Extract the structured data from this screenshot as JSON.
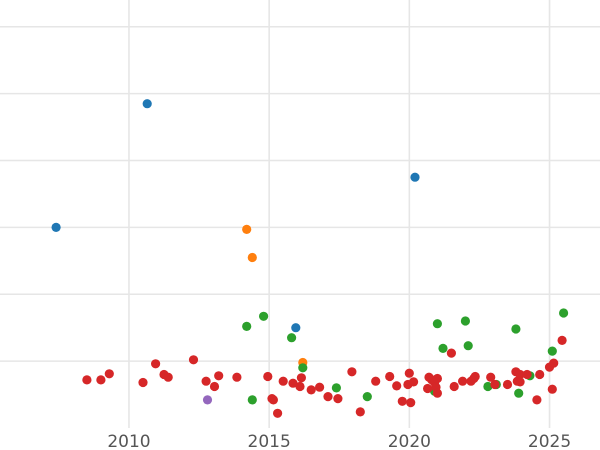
{
  "chart_data": {
    "type": "scatter",
    "title": "",
    "xlabel": "",
    "ylabel": "",
    "xlim": [
      2005.4,
      2026.8
    ],
    "ylim": [
      0,
      6.4
    ],
    "x_ticks": [
      2010,
      2015,
      2020,
      2025
    ],
    "x_tick_labels": [
      "2010",
      "2015",
      "2020",
      "2025"
    ],
    "y_gridlines": [
      1,
      2,
      3,
      4,
      5,
      6
    ],
    "y_tick_labels_visible": false,
    "grid": true,
    "legend": "none",
    "series": [
      {
        "color": "#1f77b4",
        "points": [
          [
            2007.4,
            3.0
          ],
          [
            2010.65,
            4.85
          ],
          [
            2020.2,
            3.75
          ],
          [
            2015.95,
            1.5
          ]
        ]
      },
      {
        "color": "#ff7f0e",
        "points": [
          [
            2014.2,
            2.97
          ],
          [
            2014.4,
            2.55
          ],
          [
            2016.2,
            0.98
          ]
        ]
      },
      {
        "color": "#2ca02c",
        "points": [
          [
            2014.2,
            1.52
          ],
          [
            2014.8,
            1.67
          ],
          [
            2015.8,
            1.35
          ],
          [
            2016.2,
            0.9
          ],
          [
            2017.4,
            0.6
          ],
          [
            2014.4,
            0.42
          ],
          [
            2018.5,
            0.47
          ],
          [
            2021.0,
            1.56
          ],
          [
            2022.0,
            1.6
          ],
          [
            2023.8,
            1.48
          ],
          [
            2025.5,
            1.72
          ],
          [
            2021.2,
            1.19
          ],
          [
            2022.1,
            1.23
          ],
          [
            2025.1,
            1.15
          ],
          [
            2020.9,
            0.55
          ],
          [
            2023.1,
            0.65
          ],
          [
            2023.9,
            0.52
          ],
          [
            2022.8,
            0.62
          ],
          [
            2024.3,
            0.78
          ]
        ]
      },
      {
        "color": "#d62728",
        "points": [
          [
            2008.5,
            0.72
          ],
          [
            2009.0,
            0.72
          ],
          [
            2009.3,
            0.81
          ],
          [
            2010.5,
            0.68
          ],
          [
            2010.95,
            0.96
          ],
          [
            2011.25,
            0.8
          ],
          [
            2011.4,
            0.76
          ],
          [
            2012.3,
            1.02
          ],
          [
            2012.75,
            0.7
          ],
          [
            2013.05,
            0.62
          ],
          [
            2013.2,
            0.78
          ],
          [
            2013.85,
            0.76
          ],
          [
            2014.95,
            0.77
          ],
          [
            2015.15,
            0.42
          ],
          [
            2015.1,
            0.44
          ],
          [
            2015.3,
            0.22
          ],
          [
            2015.5,
            0.7
          ],
          [
            2015.85,
            0.67
          ],
          [
            2016.1,
            0.62
          ],
          [
            2016.15,
            0.75
          ],
          [
            2016.5,
            0.57
          ],
          [
            2016.8,
            0.61
          ],
          [
            2017.1,
            0.47
          ],
          [
            2017.45,
            0.44
          ],
          [
            2017.95,
            0.84
          ],
          [
            2018.25,
            0.24
          ],
          [
            2018.8,
            0.7
          ],
          [
            2019.3,
            0.77
          ],
          [
            2019.55,
            0.63
          ],
          [
            2019.75,
            0.4
          ],
          [
            2019.95,
            0.65
          ],
          [
            2020.0,
            0.82
          ],
          [
            2020.05,
            0.38
          ],
          [
            2020.15,
            0.69
          ],
          [
            2020.65,
            0.59
          ],
          [
            2020.7,
            0.76
          ],
          [
            2020.8,
            0.72
          ],
          [
            2020.9,
            0.68
          ],
          [
            2020.95,
            0.61
          ],
          [
            2021.0,
            0.74
          ],
          [
            2021.0,
            0.52
          ],
          [
            2021.5,
            1.12
          ],
          [
            2021.6,
            0.62
          ],
          [
            2021.9,
            0.7
          ],
          [
            2022.2,
            0.7
          ],
          [
            2022.3,
            0.74
          ],
          [
            2022.35,
            0.77
          ],
          [
            2022.9,
            0.76
          ],
          [
            2023.05,
            0.65
          ],
          [
            2023.5,
            0.65
          ],
          [
            2023.8,
            0.84
          ],
          [
            2023.85,
            0.7
          ],
          [
            2023.95,
            0.69
          ],
          [
            2023.95,
            0.8
          ],
          [
            2024.2,
            0.8
          ],
          [
            2024.55,
            0.42
          ],
          [
            2024.65,
            0.8
          ],
          [
            2025.0,
            0.91
          ],
          [
            2025.15,
            0.97
          ],
          [
            2025.1,
            0.58
          ],
          [
            2025.45,
            1.31
          ]
        ]
      },
      {
        "color": "#9467bd",
        "points": [
          [
            2012.8,
            0.42
          ]
        ]
      }
    ]
  }
}
